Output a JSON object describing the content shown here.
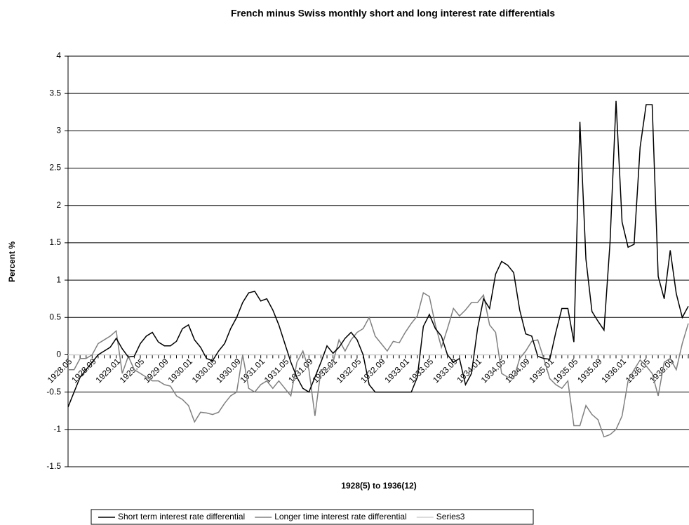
{
  "chart_data": {
    "type": "line",
    "title": "French minus Swiss monthly short and long interest rate differentials",
    "x_label": "1928(5) to 1936(12)",
    "y_label": "Percent %",
    "categories": [
      "1928.05",
      null,
      null,
      null,
      "1928.09",
      null,
      null,
      null,
      "1929.01",
      null,
      null,
      null,
      "1929.05",
      null,
      null,
      null,
      "1929.09",
      null,
      null,
      null,
      "1930.01",
      null,
      null,
      null,
      "1930.05",
      null,
      null,
      null,
      "1930.09",
      null,
      null,
      null,
      "1931.01",
      null,
      null,
      null,
      "1931.05",
      null,
      null,
      null,
      "1931.09",
      null,
      null,
      null,
      "1932.01",
      null,
      null,
      null,
      "1932.05",
      null,
      null,
      null,
      "1932.09",
      null,
      null,
      null,
      "1933.01",
      null,
      null,
      null,
      "1933.05",
      null,
      null,
      null,
      "1933.09",
      null,
      null,
      null,
      "1934.01",
      null,
      null,
      null,
      "1934.05",
      null,
      null,
      null,
      "1934.09",
      null,
      null,
      null,
      "1935.01",
      null,
      null,
      null,
      "1935.05",
      null,
      null,
      null,
      "1935.09",
      null,
      null,
      null,
      "1936.01",
      null,
      null,
      null,
      "1936.05",
      null,
      null,
      null,
      "1936.09",
      null,
      null,
      null
    ],
    "series": [
      {
        "name": "Short term interest rate differential",
        "color": "#000000",
        "values": [
          -0.7,
          -0.5,
          -0.3,
          -0.2,
          -0.1,
          0.0,
          0.05,
          0.1,
          0.22,
          0.08,
          -0.03,
          -0.02,
          0.15,
          0.25,
          0.3,
          0.17,
          0.12,
          0.12,
          0.18,
          0.35,
          0.4,
          0.2,
          0.1,
          -0.05,
          -0.08,
          0.05,
          0.15,
          0.35,
          0.5,
          0.7,
          0.83,
          0.85,
          0.72,
          0.75,
          0.6,
          0.4,
          0.15,
          -0.1,
          -0.3,
          -0.45,
          -0.5,
          -0.3,
          -0.1,
          0.12,
          0.02,
          0.1,
          0.22,
          0.3,
          0.2,
          0.0,
          -0.4,
          -0.5,
          -0.5,
          -0.5,
          -0.5,
          -0.5,
          -0.5,
          -0.5,
          -0.3,
          0.38,
          0.54,
          0.35,
          0.25,
          0.0,
          -0.1,
          -0.05,
          -0.4,
          -0.25,
          0.35,
          0.75,
          0.62,
          1.08,
          1.25,
          1.2,
          1.1,
          0.6,
          0.28,
          0.25,
          -0.02,
          -0.05,
          -0.06,
          0.3,
          0.62,
          0.62,
          0.17,
          3.12,
          1.28,
          0.58,
          0.45,
          0.33,
          1.5,
          3.4,
          1.78,
          1.44,
          1.48,
          2.78,
          3.35,
          3.35,
          1.05,
          0.75,
          1.4,
          0.82,
          0.5,
          0.65
        ]
      },
      {
        "name": "Longer time interest rate differential",
        "color": "#808080",
        "values": [
          -0.2,
          -0.2,
          -0.05,
          -0.05,
          0.0,
          0.15,
          0.2,
          0.25,
          0.32,
          -0.25,
          -0.02,
          -0.2,
          -0.25,
          -0.3,
          -0.35,
          -0.35,
          -0.4,
          -0.42,
          -0.55,
          -0.6,
          -0.68,
          -0.9,
          -0.77,
          -0.78,
          -0.8,
          -0.77,
          -0.65,
          -0.55,
          -0.5,
          0.0,
          -0.45,
          -0.5,
          -0.4,
          -0.35,
          -0.45,
          -0.35,
          -0.45,
          -0.55,
          -0.1,
          0.05,
          -0.2,
          -0.82,
          -0.2,
          -0.2,
          -0.1,
          0.2,
          0.05,
          0.2,
          0.3,
          0.35,
          0.5,
          0.25,
          0.15,
          0.05,
          0.18,
          0.16,
          0.3,
          0.42,
          0.52,
          0.83,
          0.78,
          0.4,
          0.1,
          0.35,
          0.62,
          0.52,
          0.6,
          0.7,
          0.7,
          0.8,
          0.4,
          0.3,
          -0.25,
          -0.3,
          -0.32,
          -0.05,
          0.05,
          0.18,
          0.2,
          -0.05,
          -0.32,
          -0.4,
          -0.45,
          -0.35,
          -0.95,
          -0.95,
          -0.68,
          -0.8,
          -0.87,
          -1.1,
          -1.07,
          -1.0,
          -0.82,
          -0.35,
          -0.2,
          -0.07,
          -0.15,
          -0.25,
          -0.55,
          -0.1,
          -0.05,
          -0.2,
          0.15,
          0.42
        ]
      },
      {
        "name": "Series3",
        "color": "#d0d0d0",
        "values": [
          0,
          0,
          0,
          0,
          0,
          0,
          0,
          0,
          0,
          0,
          0,
          0,
          0,
          0,
          0,
          0,
          0,
          0,
          0,
          0,
          0,
          0,
          0,
          0,
          0,
          0,
          0,
          0,
          0,
          0,
          0,
          0,
          0,
          0,
          0,
          0,
          0,
          0,
          0,
          0,
          0,
          0,
          0,
          0,
          0,
          0,
          0,
          0,
          0,
          0,
          0,
          0,
          0,
          0,
          0,
          0,
          0,
          0,
          0,
          0,
          0,
          0,
          0,
          0,
          0,
          0,
          0,
          0,
          0,
          0,
          0,
          0,
          0,
          0,
          0,
          0,
          0,
          0,
          0,
          0,
          0,
          0,
          0,
          0,
          0,
          0,
          0,
          0,
          0,
          0,
          0,
          0,
          0,
          0,
          0,
          0,
          0,
          0,
          0,
          0,
          0,
          0,
          0,
          0
        ]
      }
    ],
    "ylim": [
      -1.5,
      4
    ],
    "yticks": [
      -1.5,
      -1,
      -0.5,
      0,
      0.5,
      1,
      1.5,
      2,
      2.5,
      3,
      3.5,
      4
    ],
    "grid": true,
    "legend": "bottom"
  }
}
